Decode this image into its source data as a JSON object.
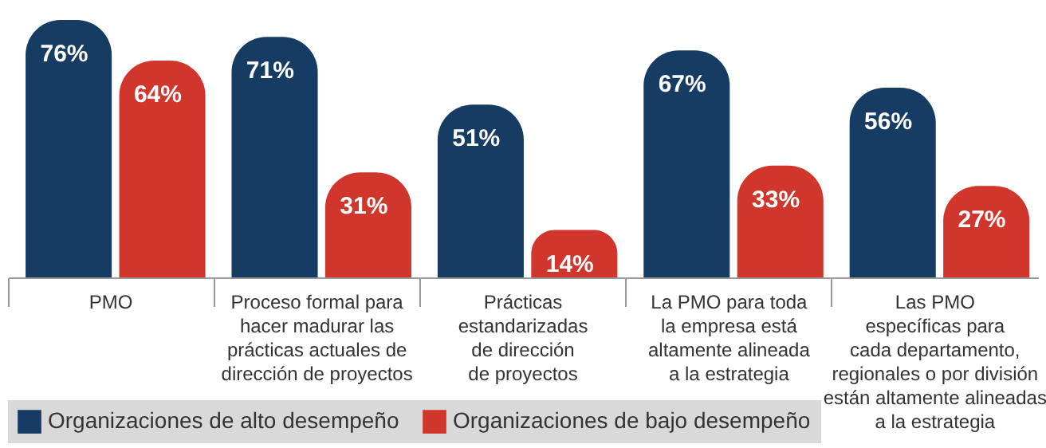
{
  "chart_data": {
    "type": "bar",
    "categories": [
      "PMO",
      "Proceso formal para\nhacer madurar las\nprácticas actuales de\ndirección de proyectos",
      "Prácticas\nestandarizadas\nde dirección\nde proyectos",
      "La PMO para toda\nla empresa está\naltamente alineada\na la estrategia",
      "Las PMO\nespecíficas para\ncada departamento,\nregionales o por división\nestán altamente alineadas\na la estrategia"
    ],
    "series": [
      {
        "name": "Organizaciones de alto desempeño",
        "color": "#163c63",
        "values": [
          76,
          71,
          51,
          67,
          56
        ],
        "value_labels": [
          "76%",
          "71%",
          "51%",
          "67%",
          "56%"
        ]
      },
      {
        "name": "Organizaciones de bajo desempeño",
        "color": "#d0362b",
        "values": [
          64,
          31,
          14,
          33,
          27
        ],
        "value_labels": [
          "64%",
          "31%",
          "14%",
          "33%",
          "27%"
        ]
      }
    ],
    "legend": "bottom left"
  }
}
